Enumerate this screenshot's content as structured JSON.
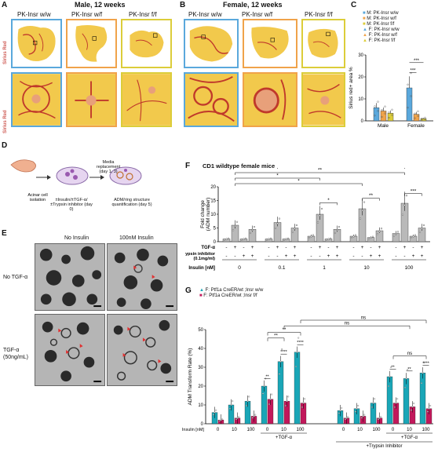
{
  "panels": {
    "A": {
      "letter": "A",
      "title": "Male, 12 weeks",
      "columns": [
        "PK-Insr w/w",
        "PK-Insr w/f",
        "PK-Insr f/f"
      ],
      "row_label": "Sirius Red"
    },
    "B": {
      "letter": "B",
      "title": "Female, 12 weeks",
      "columns": [
        "PK-Insr w/w",
        "PK-Insr w/f",
        "PK-Insr f/f"
      ]
    },
    "C": {
      "letter": "C",
      "ylabel": "Sirius red+ area %",
      "legend": [
        {
          "label": "M: PK-Insr w/w",
          "color": "#5aa8dc"
        },
        {
          "label": "M: PK-Insr w/f",
          "color": "#f0a34a"
        },
        {
          "label": "M: PK-Insr f/f",
          "color": "#dccd3a"
        },
        {
          "label": "F: PK-Insr w/w",
          "color": "#5aa8dc"
        },
        {
          "label": "F: PK-Insr w/f",
          "color": "#f0a34a"
        },
        {
          "label": "F: PK-Insr f/f",
          "color": "#dccd3a"
        }
      ],
      "yticks": [
        "0",
        "10",
        "20",
        "30"
      ],
      "xticks": [
        "Male",
        "Female"
      ],
      "sig": [
        "***",
        "***"
      ]
    },
    "D": {
      "letter": "D",
      "steps": [
        "Acinar cell isolation",
        "±Insulin/±TGF-α/±Trypsin inhibitor (day 0)",
        "Media replacement (day 1, 3)",
        "ADM/ring structure quantification (day 5)"
      ]
    },
    "E": {
      "letter": "E",
      "col_labels": [
        "No Insulin",
        "100nM Insulin"
      ],
      "row_labels": [
        "No TGF-α",
        "TGF-α (50ng/mL)"
      ]
    },
    "F": {
      "letter": "F",
      "title": "CD1 wildtype female mice",
      "ylabel": "Fold change (ADM number)",
      "yticks": [
        "0",
        "5",
        "10",
        "15",
        "20"
      ],
      "row_tgf": "TGF-α",
      "row_trypsin": "Trypsin inhibitor (0.1mg/ml)",
      "row_insulin": "Insulin [nM]",
      "insulin_values": [
        "0",
        "0.1",
        "1",
        "10",
        "100"
      ],
      "signs_tgf": [
        "-",
        "+",
        "-",
        "+"
      ],
      "signs_trypsin": [
        "-",
        "-",
        "+",
        "+"
      ],
      "sig": [
        "*",
        "**",
        "*",
        "*",
        "**",
        "***"
      ]
    },
    "G": {
      "letter": "G",
      "ylabel": "ADM Transform Rate (%)",
      "legend": [
        {
          "label": "F: Ptf1a CreER/wt ;Insr w/w",
          "color": "#1aa6b7"
        },
        {
          "label": "F: Ptf1a CreER/wt ;Insr f/f",
          "color": "#c2185b"
        }
      ],
      "yticks": [
        "0",
        "10",
        "20",
        "30",
        "40",
        "50"
      ],
      "insulin_label": "Insulin [nM]",
      "xticks": [
        "0",
        "10",
        "100",
        "0",
        "10",
        "100",
        "0",
        "10",
        "100",
        "0",
        "10",
        "100"
      ],
      "group_labels": [
        "+TGF-α",
        "+TGF-α"
      ],
      "trypsin_label": "+Trypsin Inhibitor",
      "ns": [
        "ns",
        "ns",
        "ns"
      ],
      "sig": [
        "**",
        "****",
        "****",
        "**",
        "**",
        "**",
        "**",
        "****"
      ]
    }
  },
  "chart_data": [
    {
      "type": "bar",
      "panel": "C",
      "categories": [
        "Male",
        "Female"
      ],
      "series": [
        {
          "name": "PK-Insr w/w",
          "values": [
            6,
            15
          ]
        },
        {
          "name": "PK-Insr w/f",
          "values": [
            4.5,
            3
          ]
        },
        {
          "name": "PK-Insr f/f",
          "values": [
            3.5,
            1
          ]
        }
      ],
      "ylabel": "Sirius red+ area %",
      "ylim": [
        0,
        30
      ]
    },
    {
      "type": "bar",
      "panel": "F",
      "title": "CD1 wildtype female mice",
      "categories": [
        "0",
        "0.1",
        "1",
        "10",
        "100"
      ],
      "series": [
        {
          "name": "TGF-α - / Trypsin -",
          "values": [
            1,
            1,
            2,
            2,
            3
          ]
        },
        {
          "name": "TGF-α + / Trypsin -",
          "values": [
            6,
            7,
            10,
            12,
            14
          ]
        },
        {
          "name": "TGF-α - / Trypsin +",
          "values": [
            1,
            1,
            1,
            1.5,
            2
          ]
        },
        {
          "name": "TGF-α + / Trypsin +",
          "values": [
            4.5,
            5,
            4.5,
            4,
            5
          ]
        }
      ],
      "ylabel": "Fold change (ADM number)",
      "ylim": [
        0,
        20
      ]
    },
    {
      "type": "bar",
      "panel": "G",
      "categories": [
        "0",
        "10",
        "100",
        "0 +TGF-α",
        "10 +TGF-α",
        "100 +TGF-α",
        "0",
        "10",
        "100",
        "0 +TGF-α",
        "10 +TGF-α",
        "100 +TGF-α"
      ],
      "series": [
        {
          "name": "F: Ptf1a CreER/wt ;Insr w/w",
          "values": [
            6,
            10,
            12,
            20,
            33,
            38,
            7,
            8,
            11,
            25,
            24,
            27
          ]
        },
        {
          "name": "F: Ptf1a CreER/wt ;Insr f/f",
          "values": [
            2,
            3,
            4,
            13,
            12,
            11,
            3,
            4,
            3,
            11,
            9,
            8
          ]
        }
      ],
      "ylabel": "ADM Transform Rate (%)",
      "ylim": [
        0,
        50
      ]
    }
  ]
}
